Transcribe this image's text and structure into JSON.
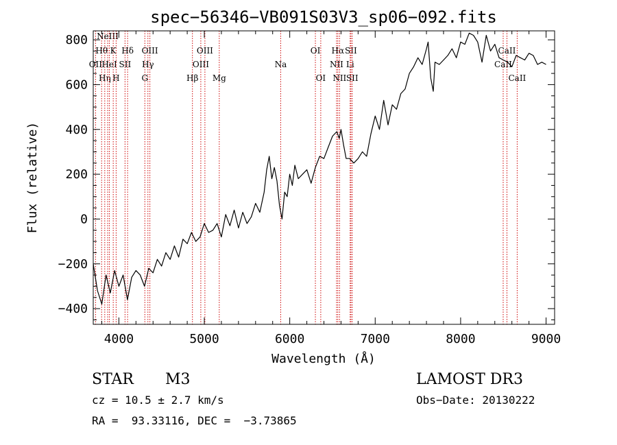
{
  "chart_data": {
    "type": "line",
    "title": "spec−56346−VB091S03V3_sp06−092.fits",
    "xlabel": "Wavelength (Å)",
    "ylabel": "Flux (relative)",
    "xlim": [
      3700,
      9100
    ],
    "ylim": [
      -470,
      840
    ],
    "xticks": [
      4000,
      5000,
      6000,
      7000,
      8000,
      9000
    ],
    "yticks": [
      -400,
      -200,
      0,
      200,
      400,
      600,
      800
    ],
    "xtick_labels": [
      "4000",
      "5000",
      "6000",
      "7000",
      "8000",
      "9000"
    ],
    "ytick_labels": [
      "−400",
      "−200",
      "0",
      "200",
      "400",
      "600",
      "800"
    ],
    "grid": false,
    "series": [
      {
        "name": "flux",
        "color": "#000000",
        "x": [
          3700,
          3750,
          3800,
          3850,
          3900,
          3950,
          4000,
          4050,
          4100,
          4150,
          4200,
          4250,
          4300,
          4350,
          4400,
          4450,
          4500,
          4550,
          4600,
          4650,
          4700,
          4750,
          4800,
          4850,
          4900,
          4950,
          5000,
          5050,
          5100,
          5150,
          5200,
          5250,
          5300,
          5350,
          5400,
          5450,
          5500,
          5550,
          5600,
          5650,
          5700,
          5730,
          5760,
          5790,
          5820,
          5850,
          5880,
          5910,
          5940,
          5970,
          6000,
          6030,
          6060,
          6100,
          6150,
          6200,
          6250,
          6300,
          6350,
          6400,
          6450,
          6500,
          6550,
          6580,
          6600,
          6630,
          6660,
          6700,
          6750,
          6800,
          6850,
          6900,
          6950,
          7000,
          7050,
          7100,
          7150,
          7200,
          7250,
          7300,
          7350,
          7400,
          7450,
          7500,
          7550,
          7600,
          7620,
          7650,
          7680,
          7700,
          7750,
          7800,
          7850,
          7900,
          7950,
          8000,
          8050,
          8100,
          8150,
          8200,
          8250,
          8300,
          8350,
          8400,
          8450,
          8500,
          8550,
          8600,
          8650,
          8700,
          8750,
          8800,
          8850,
          8900,
          8950,
          9000
        ],
        "y": [
          -200,
          -320,
          -380,
          -250,
          -330,
          -230,
          -300,
          -250,
          -360,
          -260,
          -230,
          -250,
          -300,
          -220,
          -240,
          -180,
          -210,
          -150,
          -180,
          -120,
          -170,
          -90,
          -110,
          -60,
          -100,
          -80,
          -20,
          -60,
          -50,
          -20,
          -80,
          20,
          -30,
          40,
          -40,
          30,
          -20,
          10,
          70,
          30,
          120,
          220,
          280,
          180,
          230,
          170,
          60,
          0,
          120,
          100,
          200,
          150,
          240,
          180,
          200,
          220,
          160,
          230,
          280,
          270,
          320,
          370,
          390,
          360,
          400,
          330,
          270,
          270,
          250,
          270,
          300,
          280,
          380,
          460,
          400,
          530,
          420,
          510,
          490,
          560,
          580,
          650,
          680,
          720,
          690,
          760,
          790,
          630,
          570,
          700,
          690,
          710,
          730,
          760,
          720,
          790,
          780,
          830,
          820,
          790,
          700,
          820,
          750,
          780,
          720,
          710,
          700,
          680,
          730,
          720,
          710,
          740,
          730,
          690,
          700,
          690
        ]
      }
    ],
    "lines": [
      {
        "x": 3727,
        "label": "OII",
        "row": 2
      },
      {
        "x": 3798,
        "label": "Hθ",
        "row": 1
      },
      {
        "x": 3835,
        "label": "Hη",
        "row": 3
      },
      {
        "x": 3869,
        "label": "NeIII",
        "row": 0
      },
      {
        "x": 3889,
        "label": "HeI",
        "row": 2
      },
      {
        "x": 3934,
        "label": "K",
        "row": 1
      },
      {
        "x": 3968,
        "label": "H",
        "row": 3
      },
      {
        "x": 4072,
        "label": "SII",
        "row": 2
      },
      {
        "x": 4102,
        "label": "Hδ",
        "row": 1
      },
      {
        "x": 4304,
        "label": "G",
        "row": 3
      },
      {
        "x": 4340,
        "label": "Hγ",
        "row": 2
      },
      {
        "x": 4363,
        "label": "OIII",
        "row": 1
      },
      {
        "x": 4861,
        "label": "Hβ",
        "row": 3
      },
      {
        "x": 4959,
        "label": "OIII",
        "row": 2
      },
      {
        "x": 5007,
        "label": "OIII",
        "row": 1
      },
      {
        "x": 5175,
        "label": "Mg",
        "row": 3
      },
      {
        "x": 5894,
        "label": "Na",
        "row": 2
      },
      {
        "x": 6300,
        "label": "OI",
        "row": 1
      },
      {
        "x": 6363,
        "label": "OI",
        "row": 3
      },
      {
        "x": 6548,
        "label": "NII",
        "row": 2
      },
      {
        "x": 6563,
        "label": "Hα",
        "row": 1
      },
      {
        "x": 6583,
        "label": "NII",
        "row": 3
      },
      {
        "x": 6707,
        "label": "Li",
        "row": 2
      },
      {
        "x": 6716,
        "label": "SII",
        "row": 1
      },
      {
        "x": 6731,
        "label": "SII",
        "row": 3
      },
      {
        "x": 8498,
        "label": "CaII",
        "row": 2
      },
      {
        "x": 8542,
        "label": "CaII",
        "row": 1
      },
      {
        "x": 8662,
        "label": "CaII",
        "row": 3
      }
    ],
    "line_color": "#cc0000"
  },
  "info": {
    "class_label": "STAR",
    "subclass": "M3",
    "survey": "LAMOST DR3",
    "redshift": "cz = 10.5 ± 2.7 km/s",
    "obs_date": "Obs−Date: 20130222",
    "coords": "RA =  93.33116, DEC =  −3.73865"
  }
}
